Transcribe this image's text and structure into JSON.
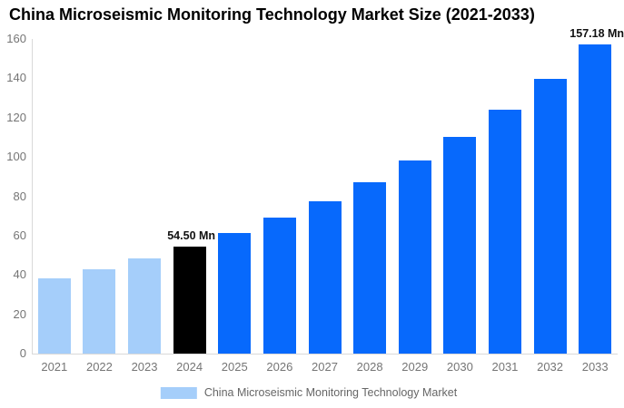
{
  "title": "China Microseismic Monitoring Technology Market Size (2021-2033)",
  "legend": {
    "label": "China Microseismic Monitoring Technology Market",
    "swatch_color": "#a5cefa"
  },
  "colors": {
    "historical_bar": "#a5cefa",
    "base_year_bar": "#000000",
    "forecast_bar": "#0769fc",
    "axis_line": "#d9d9d9",
    "tick_text": "#757575",
    "title_text": "#000000"
  },
  "chart_data": {
    "type": "bar",
    "title": "China Microseismic Monitoring Technology Market Size (2021-2033)",
    "xlabel": "",
    "ylabel": "",
    "categories": [
      "2021",
      "2022",
      "2023",
      "2024",
      "2025",
      "2026",
      "2027",
      "2028",
      "2029",
      "2030",
      "2031",
      "2032",
      "2033"
    ],
    "values": [
      38.29,
      43.07,
      48.45,
      54.5,
      61.31,
      68.97,
      77.58,
      87.27,
      98.17,
      110.43,
      124.22,
      139.73,
      157.18
    ],
    "bar_colors": [
      "#a5cefa",
      "#a5cefa",
      "#a5cefa",
      "#000000",
      "#0769fc",
      "#0769fc",
      "#0769fc",
      "#0769fc",
      "#0769fc",
      "#0769fc",
      "#0769fc",
      "#0769fc",
      "#0769fc"
    ],
    "unit": "Mn",
    "y_ticks": [
      0,
      20,
      40,
      60,
      80,
      100,
      120,
      140,
      160
    ],
    "ylim": [
      0,
      160
    ],
    "grid": false,
    "legend_position": "bottom",
    "annotations": [
      {
        "category": "2024",
        "text": "54.50 Mn"
      },
      {
        "category": "2033",
        "text": "157.18 Mn"
      }
    ]
  }
}
